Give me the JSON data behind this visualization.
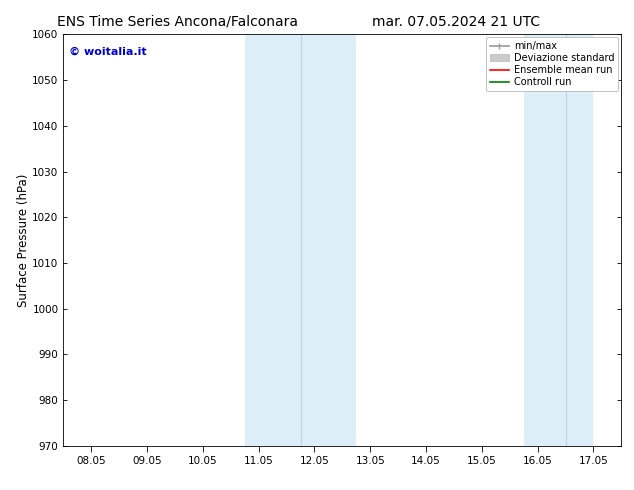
{
  "title_left": "ENS Time Series Ancona/Falconara",
  "title_right": "mar. 07.05.2024 21 UTC",
  "ylabel": "Surface Pressure (hPa)",
  "ylim": [
    970,
    1060
  ],
  "yticks": [
    970,
    980,
    990,
    1000,
    1010,
    1020,
    1030,
    1040,
    1050,
    1060
  ],
  "xtick_labels": [
    "08.05",
    "09.05",
    "10.05",
    "11.05",
    "12.05",
    "13.05",
    "14.05",
    "15.05",
    "16.05",
    "17.05"
  ],
  "xtick_positions": [
    0,
    1,
    2,
    3,
    4,
    5,
    6,
    7,
    8,
    9
  ],
  "xlim": [
    -0.5,
    9.5
  ],
  "shaded_regions": [
    {
      "xmin": 2.75,
      "xmax": 4.75,
      "color": "#ddeef8"
    },
    {
      "xmin": 7.75,
      "xmax": 9.0,
      "color": "#ddeef8"
    }
  ],
  "vertical_lines": [
    {
      "x": 3.75,
      "color": "#b8d4e8",
      "lw": 0.8
    },
    {
      "x": 8.5,
      "color": "#b8d4e8",
      "lw": 0.8
    }
  ],
  "watermark": "© woitalia.it",
  "watermark_color": "#0000cc",
  "legend_entries": [
    {
      "label": "min/max",
      "color": "#999999",
      "lw": 1.2
    },
    {
      "label": "Deviazione standard",
      "color": "#cccccc",
      "lw": 5
    },
    {
      "label": "Ensemble mean run",
      "color": "red",
      "lw": 1.2
    },
    {
      "label": "Controll run",
      "color": "green",
      "lw": 1.2
    }
  ],
  "bg_color": "#ffffff",
  "title_fontsize": 10,
  "tick_fontsize": 7.5,
  "ylabel_fontsize": 8.5
}
